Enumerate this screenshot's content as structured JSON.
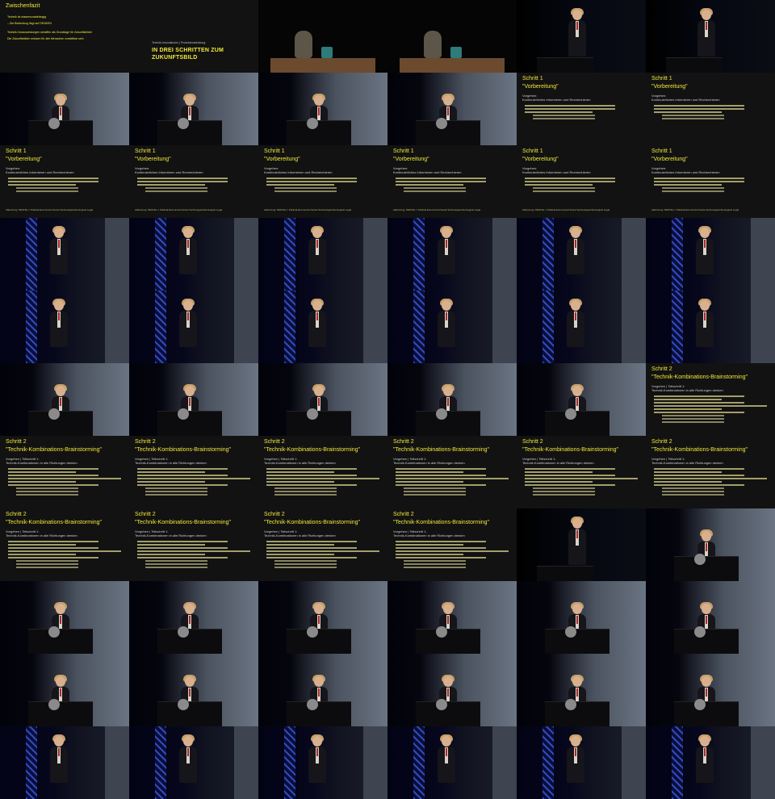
{
  "slides": {
    "zwischenfazit": {
      "title": "Zwischenfazit",
      "line1": "Technik ist wissensunabhängig",
      "line2": "– Die Bedeutung liegt auf DENKEN",
      "line3": "Technik-Voraussetzungen schaffen als Grundlage für Zukunftsbilder",
      "line4": "Die Zukunftsbilder müssen für alle Menschen vorstellbar sein"
    },
    "drei_schritte": {
      "pre": "Technik-Innovationen | Produktentwicklung",
      "heading_line1": "IN DREI SCHRITTEN ZUM",
      "heading_line2": "ZUKUNFTSBILD"
    },
    "schritt1": {
      "title": "Schritt 1",
      "subtitle": "\"Vorbereitung\"",
      "meta": "Vorgehen:",
      "meta2": "Kontinuierliches Informieren und Recherchieren",
      "footer": "Abkürzung: PESTEL = Political Economical Social Technological Ecological Legal"
    },
    "schritt2": {
      "title": "Schritt 2",
      "subtitle": "\"Technik-Kombinations-Brainstorming\"",
      "meta": "Vorgehen | Teilschritt 1:",
      "meta2": "Technik-Kombinationen in alle Richtungen denken"
    }
  },
  "layout_note": "",
  "grid": {
    "rows": [
      [
        "zwischenfazit",
        "drei_schritte",
        "table",
        "table",
        "podium-dark",
        "podium-dark"
      ],
      [
        "podium",
        "podium",
        "podium",
        "podium",
        "schritt1-short",
        "schritt1-short"
      ],
      [
        "schritt1",
        "schritt1",
        "schritt1",
        "schritt1",
        "schritt1",
        "schritt1"
      ],
      [
        "truss",
        "truss",
        "truss",
        "truss",
        "truss",
        "truss"
      ],
      [
        "truss",
        "truss",
        "truss",
        "truss",
        "truss",
        "truss"
      ],
      [
        "podium",
        "podium",
        "podium",
        "podium",
        "podium",
        "schritt2-short"
      ],
      [
        "schritt2",
        "schritt2",
        "schritt2",
        "schritt2",
        "schritt2",
        "schritt2"
      ],
      [
        "schritt2",
        "schritt2",
        "schritt2",
        "schritt2",
        "dark",
        "podium"
      ],
      [
        "podium",
        "podium",
        "podium",
        "podium",
        "podium",
        "podium"
      ],
      [
        "podium",
        "podium",
        "podium",
        "podium",
        "podium",
        "podium"
      ],
      [
        "truss",
        "truss",
        "truss",
        "truss",
        "truss",
        "truss"
      ]
    ]
  }
}
